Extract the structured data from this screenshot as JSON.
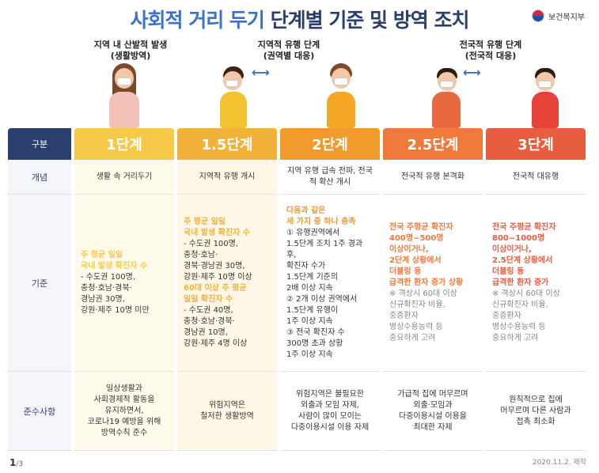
{
  "title": {
    "part1": "사회적 거리 두기",
    "part2": "단계별 기준 및 방역 조치"
  },
  "ministry": "보건복지부",
  "captions": {
    "c1": [
      "지역 내 산발적 발생",
      "(생활방역)"
    ],
    "c2": [
      "지역적 유행 단계",
      "(권역별 대응)"
    ],
    "c3": [
      "전국적 유행 단계",
      "(전국적 대응)"
    ]
  },
  "row_labels": [
    "구분",
    "개념",
    "기준",
    "준수사항"
  ],
  "colors": {
    "l1": "#f7c948",
    "l15": "#f2b23a",
    "l2": "#f29a2c",
    "l25": "#ef7a3c",
    "l3": "#e85d3f",
    "navy": "#2a3f6e",
    "blue": "#3b72c9"
  },
  "levels": [
    {
      "name": "1단계",
      "concept": "생활 속 거리두기",
      "criteria": [
        {
          "t": "주 평균 일일",
          "c": "l1"
        },
        {
          "t": "국내 발생 확진자 수",
          "c": "l1"
        },
        {
          "t": "- 수도권 100명,",
          "c": ""
        },
        {
          "t": "충청·호남·경북·",
          "c": ""
        },
        {
          "t": "경남권 30명,",
          "c": ""
        },
        {
          "t": "강원·제주 10명 미만",
          "c": ""
        }
      ],
      "rules": [
        "일상생활과",
        "사회경제적 활동을",
        "유지하면서,",
        "코로나19 예방을 위해",
        "방역수칙 준수"
      ]
    },
    {
      "name": "1.5단계",
      "concept": "지역적 유행 개시",
      "criteria": [
        {
          "t": "주 평균 일일",
          "c": "l15"
        },
        {
          "t": "국내 발생 확진자 수",
          "c": "l15"
        },
        {
          "t": "- 수도권 100명,",
          "c": ""
        },
        {
          "t": "충청·호남·",
          "c": ""
        },
        {
          "t": "경북·경남권 30명,",
          "c": ""
        },
        {
          "t": "강원·제주 10명 이상",
          "c": ""
        },
        {
          "t": " ",
          "c": ""
        },
        {
          "t": "60대 이상 주 평균",
          "c": "l15"
        },
        {
          "t": "일일 확진자 수",
          "c": "l15"
        },
        {
          "t": "- 수도권 40명,",
          "c": ""
        },
        {
          "t": "충청·호남·경북·",
          "c": ""
        },
        {
          "t": "경남권 10명,",
          "c": ""
        },
        {
          "t": "강원·제주 4명 이상",
          "c": ""
        }
      ],
      "rules": [
        "위험지역은",
        "철저한 생활방역"
      ]
    },
    {
      "name": "2단계",
      "concept": "지역 유행 급속 전파, 전국적 확산 개시",
      "criteria": [
        {
          "t": "다음과 같은",
          "c": "l2"
        },
        {
          "t": "세 가지 중 하나 충족",
          "c": "l2"
        },
        {
          "t": "① 유행권역에서",
          "c": ""
        },
        {
          "t": "1.5단계 조치 1주 경과 후,",
          "c": ""
        },
        {
          "t": "확진자 수가",
          "c": ""
        },
        {
          "t": "1.5단계 기준의",
          "c": ""
        },
        {
          "t": "2배 이상 지속",
          "c": ""
        },
        {
          "t": "② 2개 이상 권역에서",
          "c": ""
        },
        {
          "t": "1.5단계 유행이",
          "c": ""
        },
        {
          "t": "1주 이상 지속",
          "c": ""
        },
        {
          "t": "③ 전국 확진자 수",
          "c": ""
        },
        {
          "t": "300명 초과 상황",
          "c": ""
        },
        {
          "t": "1주 이상 지속",
          "c": ""
        }
      ],
      "rules": [
        "위험지역은 불필요한",
        "외출과 모임 자제,",
        "사람이 많이 모이는",
        "다중이용시설 이용 자제"
      ]
    },
    {
      "name": "2.5단계",
      "concept": "전국적 유행 본격화",
      "criteria": [
        {
          "t": "전국 주평균 확진자",
          "c": "l25"
        },
        {
          "t": "400명~500명",
          "c": "l25"
        },
        {
          "t": "이상이거나,",
          "c": "l25"
        },
        {
          "t": "2단계 상황에서",
          "c": "l25"
        },
        {
          "t": "더블링 등",
          "c": "l25"
        },
        {
          "t": "급격한 환자 증가 상황",
          "c": "l25"
        },
        {
          "t": " ",
          "c": ""
        },
        {
          "t": "※ 격상시 60대 이상",
          "c": "note"
        },
        {
          "t": "신규확진자 비율,",
          "c": "note"
        },
        {
          "t": "중증환자",
          "c": "note"
        },
        {
          "t": "병상수용능력 등",
          "c": "note"
        },
        {
          "t": "중요하게 고려",
          "c": "note"
        }
      ],
      "rules": [
        "가급적 집에 머무르며",
        "외출·모임과",
        "다중이용시설 이용을",
        "최대한 자제"
      ]
    },
    {
      "name": "3단계",
      "concept": "전국적 대유행",
      "criteria": [
        {
          "t": "전국 주평균 확진자",
          "c": "l3"
        },
        {
          "t": "800~1000명",
          "c": "l3"
        },
        {
          "t": "이상이거나,",
          "c": "l3"
        },
        {
          "t": "2.5단계 상황에서",
          "c": "l3"
        },
        {
          "t": "더블링 등",
          "c": "l3"
        },
        {
          "t": "급격한 환자 증가",
          "c": "l3"
        },
        {
          "t": " ",
          "c": ""
        },
        {
          "t": "※ 격상시 60대 이상",
          "c": "note"
        },
        {
          "t": "신규확진자 비율,",
          "c": "note"
        },
        {
          "t": "중증환자",
          "c": "note"
        },
        {
          "t": "병상수용능력 등",
          "c": "note"
        },
        {
          "t": "중요하게 고려",
          "c": "note"
        }
      ],
      "rules": [
        "원칙적으로 집에",
        "머무르며 다른 사람과",
        "접촉 최소화"
      ]
    }
  ],
  "footer": {
    "page": "1",
    "total": "/3",
    "date": "2020.11.2. 제작"
  }
}
